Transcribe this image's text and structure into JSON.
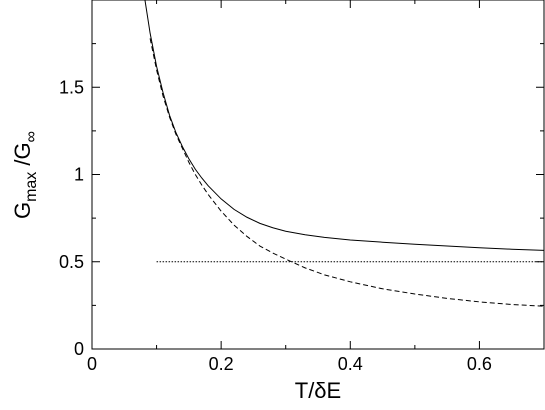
{
  "chart_data": {
    "type": "line",
    "title": "",
    "xlabel": "T/δE",
    "ylabel": {
      "main": "G",
      "sub1": "max",
      "mid": " /G",
      "sub2": "∞"
    },
    "xlim": [
      0,
      0.7
    ],
    "ylim": [
      0,
      2.0
    ],
    "xticks": [
      {
        "value": 0,
        "label": "0"
      },
      {
        "value": 0.2,
        "label": "0.2"
      },
      {
        "value": 0.4,
        "label": "0.4"
      },
      {
        "value": 0.6,
        "label": "0.6"
      }
    ],
    "yticks": [
      {
        "value": 0,
        "label": "0"
      },
      {
        "value": 0.5,
        "label": "0.5"
      },
      {
        "value": 1,
        "label": "1"
      },
      {
        "value": 1.5,
        "label": "1.5"
      }
    ],
    "grid": false,
    "legend": "none",
    "series": [
      {
        "style": "solid",
        "color": "#000000",
        "points": [
          [
            0.082,
            2.0
          ],
          [
            0.09,
            1.81
          ],
          [
            0.1,
            1.62
          ],
          [
            0.11,
            1.47
          ],
          [
            0.12,
            1.34
          ],
          [
            0.13,
            1.24
          ],
          [
            0.14,
            1.16
          ],
          [
            0.15,
            1.09
          ],
          [
            0.16,
            1.03
          ],
          [
            0.17,
            0.98
          ],
          [
            0.18,
            0.935
          ],
          [
            0.2,
            0.86
          ],
          [
            0.22,
            0.8
          ],
          [
            0.24,
            0.755
          ],
          [
            0.26,
            0.72
          ],
          [
            0.28,
            0.695
          ],
          [
            0.3,
            0.675
          ],
          [
            0.33,
            0.655
          ],
          [
            0.36,
            0.64
          ],
          [
            0.4,
            0.625
          ],
          [
            0.45,
            0.612
          ],
          [
            0.5,
            0.6
          ],
          [
            0.55,
            0.59
          ],
          [
            0.6,
            0.58
          ],
          [
            0.65,
            0.572
          ],
          [
            0.7,
            0.565
          ]
        ]
      },
      {
        "style": "dashed",
        "color": "#000000",
        "points": [
          [
            0.09,
            1.78
          ],
          [
            0.1,
            1.6
          ],
          [
            0.11,
            1.45
          ],
          [
            0.12,
            1.33
          ],
          [
            0.13,
            1.23
          ],
          [
            0.14,
            1.15
          ],
          [
            0.15,
            1.07
          ],
          [
            0.16,
            1.0
          ],
          [
            0.17,
            0.94
          ],
          [
            0.18,
            0.885
          ],
          [
            0.2,
            0.79
          ],
          [
            0.22,
            0.71
          ],
          [
            0.24,
            0.645
          ],
          [
            0.26,
            0.59
          ],
          [
            0.28,
            0.55
          ],
          [
            0.3,
            0.515
          ],
          [
            0.33,
            0.465
          ],
          [
            0.36,
            0.425
          ],
          [
            0.4,
            0.385
          ],
          [
            0.45,
            0.345
          ],
          [
            0.5,
            0.315
          ],
          [
            0.55,
            0.29
          ],
          [
            0.6,
            0.27
          ],
          [
            0.65,
            0.255
          ],
          [
            0.7,
            0.245
          ]
        ]
      },
      {
        "style": "dotted",
        "color": "#000000",
        "points": [
          [
            0.1,
            0.5
          ],
          [
            0.7,
            0.5
          ]
        ]
      }
    ]
  }
}
